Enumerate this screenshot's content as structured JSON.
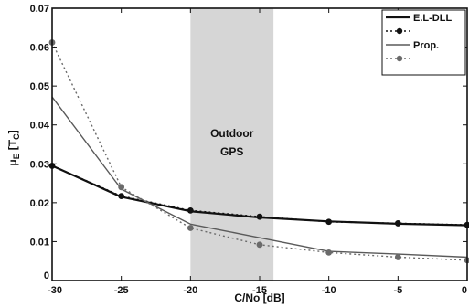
{
  "chart_data": {
    "type": "line",
    "xlabel": "C/No [dB]",
    "ylabel": "μ",
    "ylabel_sub": "Ε",
    "ylabel_unit": "[T",
    "ylabel_unit_sub": "C",
    "ylabel_unit_close": "]",
    "xlim": [
      -30,
      0
    ],
    "ylim": [
      0,
      0.07
    ],
    "xticks": [
      -30,
      -25,
      -20,
      -15,
      -10,
      -5,
      0
    ],
    "xtick_labels": [
      "-30",
      "-25",
      "-20",
      "-15",
      "-10",
      "-5",
      "0"
    ],
    "yticks": [
      0,
      0.01,
      0.02,
      0.03,
      0.04,
      0.05,
      0.06,
      0.07
    ],
    "ytick_labels": [
      "0",
      "0.01",
      "0.02",
      "0.03",
      "0.04",
      "0.05",
      "0.06",
      "0.07"
    ],
    "grid": false,
    "legend_position": "top-right",
    "shaded_region": {
      "x_start": -20,
      "x_end": -14,
      "label_line1": "Outdoor",
      "label_line2": "GPS",
      "color": "#c8c8c8"
    },
    "series": [
      {
        "name": "E.L-DLL",
        "style": "solid",
        "marker": false,
        "color": "#111111",
        "width": 2.2,
        "x": [
          -30,
          -25,
          -20,
          -15,
          -10,
          -5,
          0
        ],
        "y": [
          0.0295,
          0.0215,
          0.0178,
          0.0162,
          0.0152,
          0.0146,
          0.0142
        ]
      },
      {
        "name": "",
        "style": "dotted",
        "marker": true,
        "color": "#111111",
        "width": 1.6,
        "x": [
          -30,
          -25,
          -20,
          -15,
          -10,
          -5,
          0
        ],
        "y": [
          0.0295,
          0.0217,
          0.018,
          0.0164,
          0.0151,
          0.0147,
          0.0143
        ]
      },
      {
        "name": "Prop.",
        "style": "solid",
        "marker": false,
        "color": "#5a5a5a",
        "width": 1.4,
        "x": [
          -30,
          -25,
          -20,
          -15,
          -10,
          -5,
          0
        ],
        "y": [
          0.0472,
          0.0235,
          0.0145,
          0.011,
          0.0075,
          0.0068,
          0.006
        ]
      },
      {
        "name": "",
        "style": "dotted",
        "marker": true,
        "color": "#6a6a6a",
        "width": 1.4,
        "x": [
          -30,
          -25,
          -20,
          -15,
          -10,
          -5,
          0
        ],
        "y": [
          0.0612,
          0.024,
          0.0135,
          0.0092,
          0.0072,
          0.006,
          0.0052
        ]
      }
    ]
  }
}
